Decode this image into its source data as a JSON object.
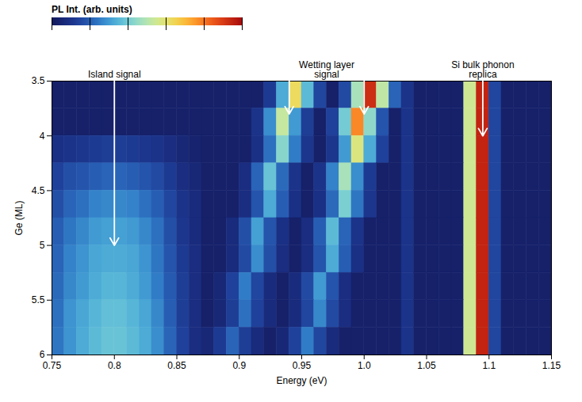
{
  "chart_data": {
    "type": "heatmap",
    "x_label": "Energy (eV)",
    "y_label": "Ge (ML)",
    "color_label": "PL Int. (arb. units)",
    "energy_bins": [
      0.75,
      0.76,
      0.77,
      0.78,
      0.79,
      0.8,
      0.81,
      0.82,
      0.83,
      0.84,
      0.85,
      0.86,
      0.87,
      0.88,
      0.89,
      0.9,
      0.91,
      0.92,
      0.93,
      0.94,
      0.95,
      0.96,
      0.97,
      0.98,
      0.99,
      1.0,
      1.01,
      1.02,
      1.03,
      1.04,
      1.05,
      1.06,
      1.07,
      1.08,
      1.09,
      1.1,
      1.11,
      1.12,
      1.13,
      1.14,
      1.15
    ],
    "ge_bins": [
      3.5,
      3.75,
      4.0,
      4.25,
      4.5,
      4.75,
      5.0,
      5.25,
      5.5,
      5.75,
      6.0
    ],
    "intensity": [
      [
        3,
        3,
        3,
        3,
        3,
        3,
        3,
        3,
        3,
        3,
        3,
        3,
        3,
        3,
        3,
        3,
        3,
        12,
        33,
        63,
        36,
        15,
        3,
        16,
        48,
        93,
        52,
        21,
        10,
        3,
        3,
        3,
        3,
        55,
        95,
        15,
        3,
        3,
        3,
        3
      ],
      [
        3,
        3,
        3,
        3,
        3,
        3,
        3,
        3,
        3,
        3,
        3,
        3,
        3,
        3,
        3,
        3,
        10,
        28,
        53,
        30,
        13,
        3,
        14,
        40,
        78,
        44,
        18,
        3,
        10,
        3,
        3,
        3,
        3,
        55,
        95,
        15,
        3,
        3,
        3,
        3
      ],
      [
        9,
        10,
        11,
        12,
        13,
        13,
        12,
        11,
        10,
        8,
        6,
        4,
        3,
        3,
        3,
        3,
        9,
        23,
        43,
        25,
        11,
        3,
        11,
        30,
        58,
        33,
        14,
        3,
        10,
        3,
        3,
        3,
        3,
        55,
        95,
        15,
        3,
        3,
        3,
        3
      ],
      [
        14,
        17,
        18,
        20,
        21,
        21,
        20,
        18,
        16,
        12,
        8,
        6,
        3,
        3,
        3,
        8,
        21,
        38,
        22,
        10,
        3,
        10,
        26,
        48,
        28,
        12,
        3,
        3,
        10,
        3,
        3,
        3,
        3,
        55,
        95,
        15,
        3,
        3,
        3,
        3
      ],
      [
        17,
        21,
        23,
        26,
        27,
        27,
        26,
        23,
        20,
        15,
        10,
        7,
        3,
        3,
        3,
        8,
        18,
        33,
        20,
        9,
        3,
        9,
        22,
        41,
        24,
        11,
        3,
        3,
        10,
        3,
        3,
        3,
        3,
        55,
        95,
        15,
        3,
        3,
        3,
        3
      ],
      [
        20,
        24,
        27,
        30,
        31,
        31,
        30,
        27,
        23,
        17,
        11,
        7,
        3,
        3,
        7,
        17,
        31,
        18,
        9,
        3,
        8,
        20,
        36,
        21,
        10,
        3,
        3,
        3,
        10,
        3,
        3,
        3,
        3,
        55,
        95,
        15,
        3,
        3,
        3,
        3
      ],
      [
        21,
        26,
        29,
        32,
        33,
        33,
        32,
        29,
        24,
        18,
        12,
        8,
        3,
        3,
        7,
        16,
        28,
        17,
        8,
        3,
        8,
        18,
        33,
        20,
        9,
        3,
        3,
        3,
        10,
        3,
        3,
        3,
        3,
        55,
        95,
        15,
        3,
        3,
        3,
        3
      ],
      [
        22,
        27,
        30,
        33,
        35,
        35,
        33,
        30,
        25,
        19,
        13,
        8,
        3,
        6,
        14,
        25,
        15,
        7,
        3,
        7,
        16,
        30,
        18,
        8,
        3,
        3,
        3,
        3,
        10,
        3,
        3,
        3,
        3,
        55,
        95,
        15,
        3,
        3,
        3,
        3
      ],
      [
        23,
        29,
        32,
        35,
        37,
        37,
        35,
        32,
        27,
        20,
        13,
        8,
        3,
        6,
        13,
        23,
        14,
        7,
        3,
        7,
        15,
        27,
        16,
        8,
        3,
        3,
        3,
        3,
        10,
        3,
        3,
        3,
        3,
        55,
        95,
        15,
        3,
        3,
        3,
        3
      ],
      [
        24,
        29,
        33,
        36,
        38,
        38,
        36,
        33,
        28,
        21,
        14,
        8,
        6,
        12,
        21,
        13,
        7,
        3,
        6,
        14,
        25,
        15,
        7,
        3,
        3,
        3,
        3,
        3,
        10,
        3,
        3,
        3,
        3,
        55,
        95,
        15,
        3,
        3,
        3,
        3
      ]
    ],
    "xlim": [
      0.75,
      1.15
    ],
    "xticks": [
      0.75,
      0.8,
      0.85,
      0.9,
      0.95,
      {
        "value": 1,
        "label": "1.0"
      },
      1.05,
      1.1,
      1.15
    ],
    "ylim": [
      3.5,
      6
    ],
    "yticks": [
      3.5,
      4,
      4.5,
      5,
      5.5,
      6
    ],
    "zlim": [
      0,
      100
    ],
    "annotations": [
      {
        "text": "Island signal",
        "targets": [
          {
            "x": 0.8,
            "y": 5.0
          }
        ]
      },
      {
        "text": "Wetting layer signal",
        "targets": [
          {
            "x": 0.94,
            "y": 3.8
          },
          {
            "x": 1.0,
            "y": 3.8
          }
        ]
      },
      {
        "text": "Si bulk phonon replica",
        "targets": [
          {
            "x": 1.095,
            "y": 4.0
          }
        ]
      }
    ]
  }
}
